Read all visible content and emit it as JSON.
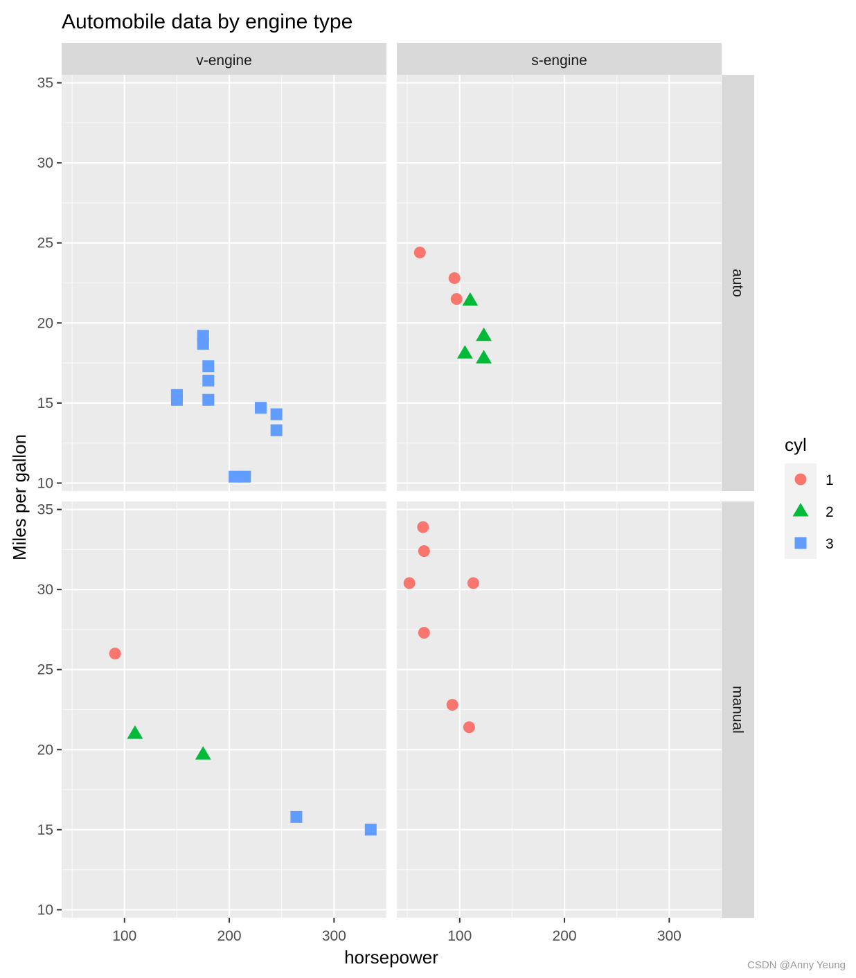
{
  "watermark": "CSDN @Anny Yeung",
  "chart_data": {
    "type": "scatter",
    "title": "Automobile data by engine type",
    "xlabel": "horsepower",
    "ylabel": "Miles per gallon",
    "xlim": [
      40,
      350
    ],
    "ylim": [
      9.5,
      35.5
    ],
    "x_ticks": [
      100,
      200,
      300
    ],
    "x_tick_labels": [
      "100",
      "200",
      "300"
    ],
    "y_ticks": [
      10,
      15,
      20,
      25,
      30,
      35
    ],
    "y_tick_labels": [
      "10",
      "15",
      "20",
      "25",
      "30",
      "35"
    ],
    "grid": true,
    "facet_cols": [
      "v-engine",
      "s-engine"
    ],
    "facet_rows": [
      "auto",
      "manual"
    ],
    "legend": {
      "title": "cyl",
      "position": "right",
      "entries": [
        {
          "label": "1",
          "shape": "circle",
          "color": "#F8766D"
        },
        {
          "label": "2",
          "shape": "triangle",
          "color": "#00BA38"
        },
        {
          "label": "3",
          "shape": "square",
          "color": "#619CFF"
        }
      ]
    },
    "panels": [
      {
        "col": "v-engine",
        "row": "auto",
        "points": [
          {
            "x": 175,
            "y": 18.7,
            "cyl": "3"
          },
          {
            "x": 175,
            "y": 19.2,
            "cyl": "3"
          },
          {
            "x": 180,
            "y": 17.3,
            "cyl": "3"
          },
          {
            "x": 180,
            "y": 16.4,
            "cyl": "3"
          },
          {
            "x": 180,
            "y": 15.2,
            "cyl": "3"
          },
          {
            "x": 150,
            "y": 15.5,
            "cyl": "3"
          },
          {
            "x": 150,
            "y": 15.2,
            "cyl": "3"
          },
          {
            "x": 230,
            "y": 14.7,
            "cyl": "3"
          },
          {
            "x": 245,
            "y": 14.3,
            "cyl": "3"
          },
          {
            "x": 245,
            "y": 13.3,
            "cyl": "3"
          },
          {
            "x": 205,
            "y": 10.4,
            "cyl": "3"
          },
          {
            "x": 215,
            "y": 10.4,
            "cyl": "3"
          }
        ]
      },
      {
        "col": "s-engine",
        "row": "auto",
        "points": [
          {
            "x": 62,
            "y": 24.4,
            "cyl": "1"
          },
          {
            "x": 95,
            "y": 22.8,
            "cyl": "1"
          },
          {
            "x": 97,
            "y": 21.5,
            "cyl": "1"
          },
          {
            "x": 110,
            "y": 21.4,
            "cyl": "2"
          },
          {
            "x": 123,
            "y": 19.2,
            "cyl": "2"
          },
          {
            "x": 105,
            "y": 18.1,
            "cyl": "2"
          },
          {
            "x": 123,
            "y": 17.8,
            "cyl": "2"
          }
        ]
      },
      {
        "col": "v-engine",
        "row": "manual",
        "points": [
          {
            "x": 91,
            "y": 26.0,
            "cyl": "1"
          },
          {
            "x": 110,
            "y": 21.0,
            "cyl": "2"
          },
          {
            "x": 175,
            "y": 19.7,
            "cyl": "2"
          },
          {
            "x": 264,
            "y": 15.8,
            "cyl": "3"
          },
          {
            "x": 335,
            "y": 15.0,
            "cyl": "3"
          }
        ]
      },
      {
        "col": "s-engine",
        "row": "manual",
        "points": [
          {
            "x": 65,
            "y": 33.9,
            "cyl": "1"
          },
          {
            "x": 66,
            "y": 32.4,
            "cyl": "1"
          },
          {
            "x": 52,
            "y": 30.4,
            "cyl": "1"
          },
          {
            "x": 113,
            "y": 30.4,
            "cyl": "1"
          },
          {
            "x": 66,
            "y": 27.3,
            "cyl": "1"
          },
          {
            "x": 93,
            "y": 22.8,
            "cyl": "1"
          },
          {
            "x": 109,
            "y": 21.4,
            "cyl": "1"
          }
        ]
      }
    ]
  }
}
